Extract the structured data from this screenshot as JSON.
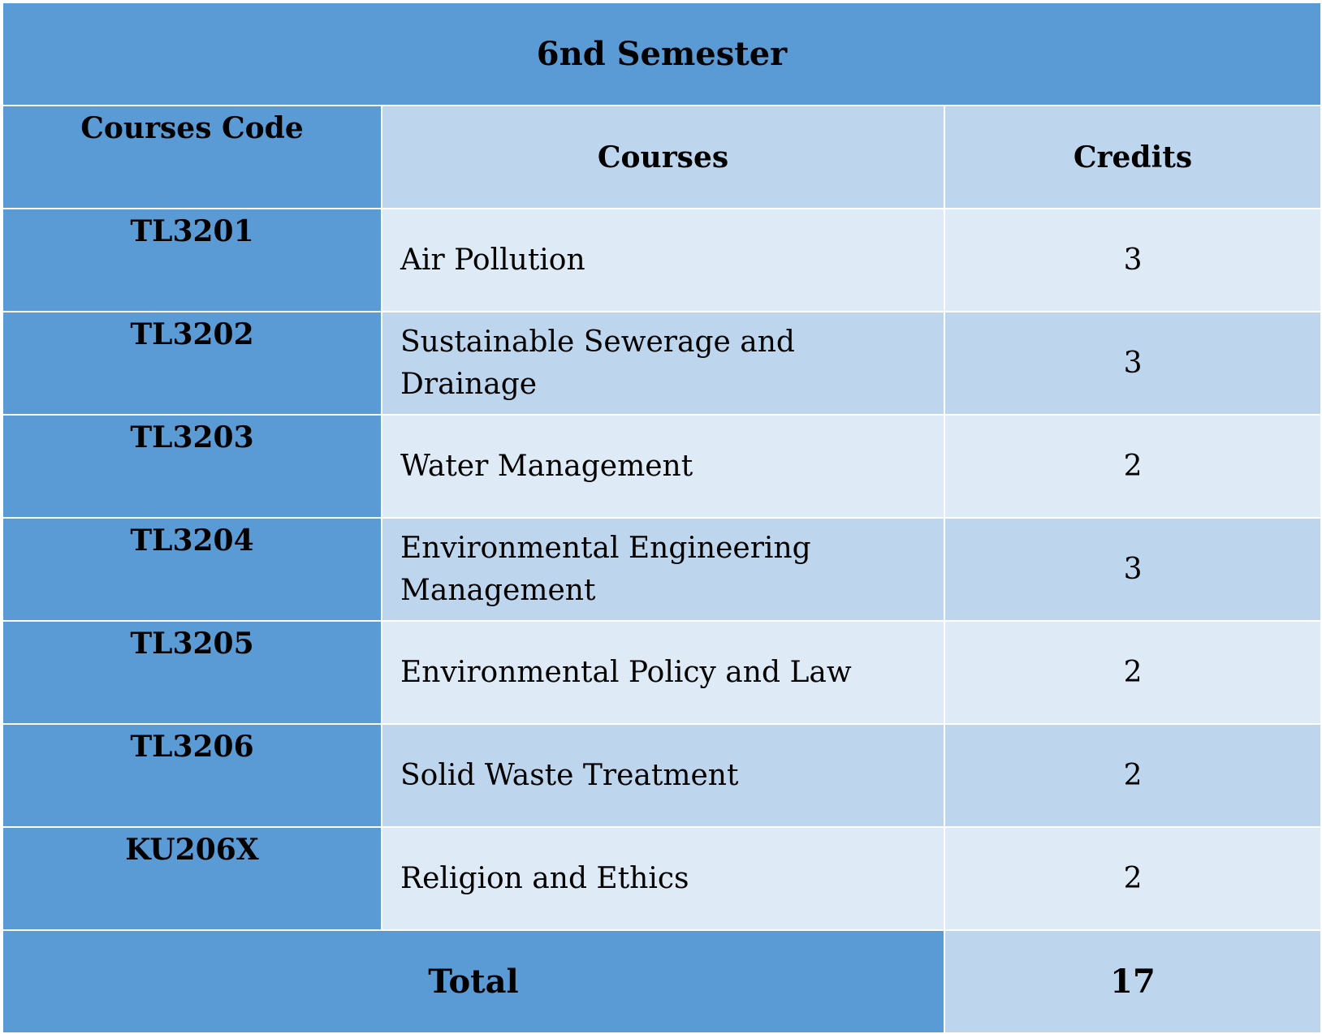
{
  "title": "6nd Semester",
  "headers": {
    "code": "Courses Code",
    "course": "Courses",
    "credits": "Credits"
  },
  "rows": [
    {
      "code": "TL3201",
      "course": "Air Pollution",
      "credits": "3"
    },
    {
      "code": "TL3202",
      "course": "Sustainable Sewerage and Drainage",
      "credits": "3"
    },
    {
      "code": "TL3203",
      "course": "Water Management",
      "credits": "2"
    },
    {
      "code": "TL3204",
      "course": "Environmental Engineering Management",
      "credits": "3"
    },
    {
      "code": "TL3205",
      "course": "Environmental Policy and Law",
      "credits": "2"
    },
    {
      "code": "TL3206",
      "course": "Solid Waste Treatment",
      "credits": "2"
    },
    {
      "code": "KU206X",
      "course": "Religion and Ethics",
      "credits": "2"
    }
  ],
  "total": {
    "label": "Total",
    "value": "17"
  },
  "colors": {
    "dark_blue": "#5b9bd5",
    "mid_blue": "#bdd6ee",
    "light_blue": "#deeaf6"
  }
}
